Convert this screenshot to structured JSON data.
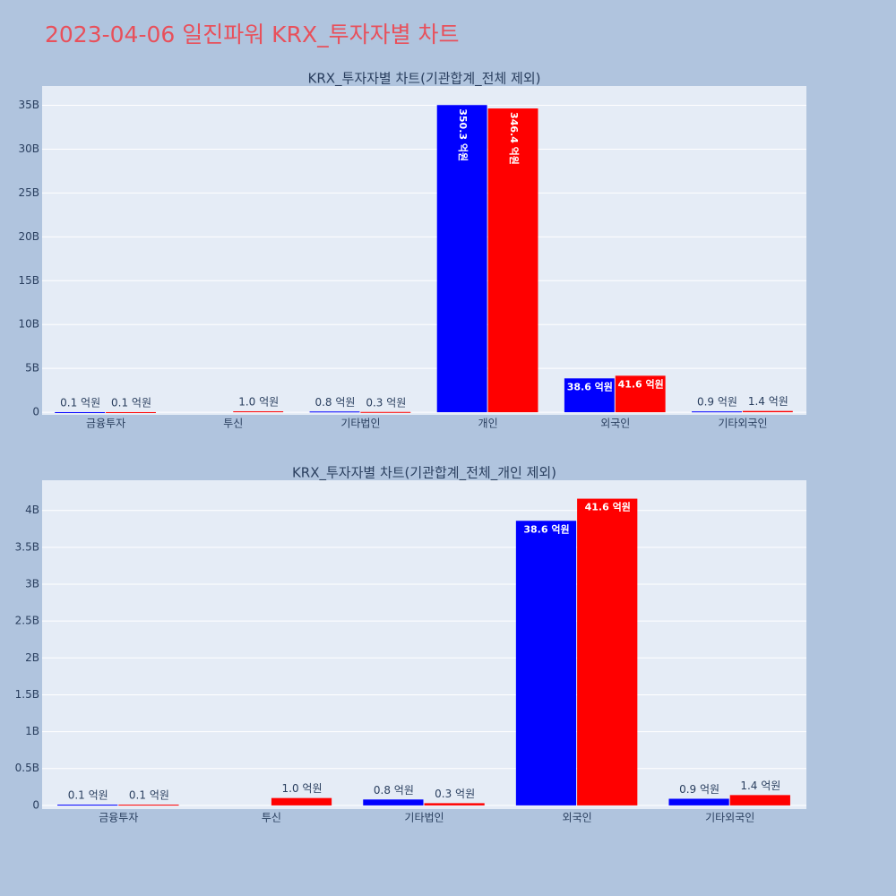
{
  "title": "2023-04-06 일진파워 KRX_투자자별 차트",
  "chart_data": [
    {
      "type": "bar",
      "title": "KRX_투자자별 차트(기관합계_전체 제외)",
      "categories": [
        "금융투자",
        "투신",
        "기타법인",
        "개인",
        "외국인",
        "기타외국인"
      ],
      "series": [
        {
          "color": "#0000ff",
          "values": [
            10000000,
            null,
            80000000,
            35030000000,
            3860000000,
            90000000
          ],
          "value_labels": [
            "0.1 억원",
            null,
            "0.8 억원",
            "350.3 억원",
            "38.6 억원",
            "0.9 억원"
          ]
        },
        {
          "color": "#ff0000",
          "values": [
            10000000,
            100000000,
            30000000,
            34640000000,
            4160000000,
            140000000
          ],
          "value_labels": [
            "0.1 억원",
            "1.0 억원",
            "0.3 억원",
            "346.4 억원",
            "41.6 억원",
            "1.4 억원"
          ]
        }
      ],
      "ylim": [
        -300000000,
        37200000000
      ],
      "yticks": [
        0,
        {
          "value": 5000000000,
          "label": "5B"
        },
        {
          "value": 10000000000,
          "label": "10B"
        },
        {
          "value": 15000000000,
          "label": "15B"
        },
        {
          "value": 20000000000,
          "label": "20B"
        },
        {
          "value": 25000000000,
          "label": "25B"
        },
        {
          "value": 30000000000,
          "label": "30B"
        },
        {
          "value": 35000000000,
          "label": "35B"
        }
      ],
      "grid": true
    },
    {
      "type": "bar",
      "title": "KRX_투자자별 차트(기관합계_전체_개인 제외)",
      "categories": [
        "금융투자",
        "투신",
        "기타법인",
        "외국인",
        "기타외국인"
      ],
      "series": [
        {
          "color": "#0000ff",
          "values": [
            10000000,
            null,
            80000000,
            3860000000,
            90000000
          ],
          "value_labels": [
            "0.1 억원",
            null,
            "0.8 억원",
            "38.6 억원",
            "0.9 억원"
          ]
        },
        {
          "color": "#ff0000",
          "values": [
            10000000,
            100000000,
            30000000,
            4160000000,
            140000000
          ],
          "value_labels": [
            "0.1 억원",
            "1.0 억원",
            "0.3 억원",
            "41.6 억원",
            "1.4 억원"
          ]
        }
      ],
      "ylim": [
        -50000000,
        4410000000
      ],
      "yticks": [
        0,
        {
          "value": 500000000,
          "label": "0.5B"
        },
        {
          "value": 1000000000,
          "label": "1B"
        },
        {
          "value": 1500000000,
          "label": "1.5B"
        },
        {
          "value": 2000000000,
          "label": "2B"
        },
        {
          "value": 2500000000,
          "label": "2.5B"
        },
        {
          "value": 3000000000,
          "label": "3B"
        },
        {
          "value": 3500000000,
          "label": "3.5B"
        },
        {
          "value": 4000000000,
          "label": "4B"
        }
      ],
      "grid": true
    }
  ]
}
